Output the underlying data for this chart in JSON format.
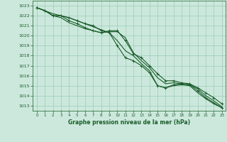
{
  "bg_color": "#cce8dc",
  "grid_color": "#99ccb8",
  "line_color": "#1a5c2a",
  "marker_color": "#1a5c2a",
  "xlabel": "Graphe pression niveau de la mer (hPa)",
  "xlabel_color": "#1a5c2a",
  "tick_color": "#1a5c2a",
  "spine_color": "#1a5c2a",
  "ylim": [
    1012.5,
    1023.5
  ],
  "xlim": [
    -0.5,
    23.5
  ],
  "yticks": [
    1013,
    1014,
    1015,
    1016,
    1017,
    1018,
    1019,
    1020,
    1021,
    1022,
    1023
  ],
  "xticks": [
    0,
    1,
    2,
    3,
    4,
    5,
    6,
    7,
    8,
    9,
    10,
    11,
    12,
    13,
    14,
    15,
    16,
    17,
    18,
    19,
    20,
    21,
    22,
    23
  ],
  "series": [
    [
      1022.8,
      1022.5,
      1022.2,
      1022.0,
      1021.8,
      1021.5,
      1021.2,
      1020.9,
      1020.6,
      1020.3,
      1019.5,
      1018.5,
      1018.0,
      1017.2,
      1016.5,
      1015.0,
      1014.8,
      1015.0,
      1015.1,
      1015.0,
      1014.3,
      1013.7,
      1013.2,
      1012.8
    ],
    [
      1022.8,
      1022.5,
      1022.0,
      1021.8,
      1021.3,
      1021.0,
      1020.7,
      1020.5,
      1020.3,
      1020.4,
      1020.4,
      1019.8,
      1018.3,
      1017.5,
      1016.8,
      1015.8,
      1015.2,
      1015.3,
      1015.2,
      1015.1,
      1014.7,
      1014.0,
      1013.5,
      1012.9
    ],
    [
      1022.8,
      1022.5,
      1022.0,
      1022.0,
      1021.5,
      1021.2,
      1020.8,
      1020.5,
      1020.3,
      1020.5,
      1020.5,
      1019.5,
      1018.2,
      1017.8,
      1017.0,
      1016.2,
      1015.5,
      1015.5,
      1015.3,
      1015.2,
      1014.8,
      1014.3,
      1013.8,
      1013.2
    ],
    [
      1022.8,
      1022.5,
      1022.0,
      1022.0,
      1021.8,
      1021.5,
      1021.2,
      1021.0,
      1020.5,
      1020.3,
      1019.0,
      1017.8,
      1017.5,
      1017.0,
      1016.3,
      1015.0,
      1014.8,
      1015.1,
      1015.2,
      1015.1,
      1014.5,
      1013.8,
      1013.3,
      1012.8
    ]
  ],
  "marker_series": [
    2,
    3
  ],
  "marker_size": 3,
  "line_width": 0.8
}
